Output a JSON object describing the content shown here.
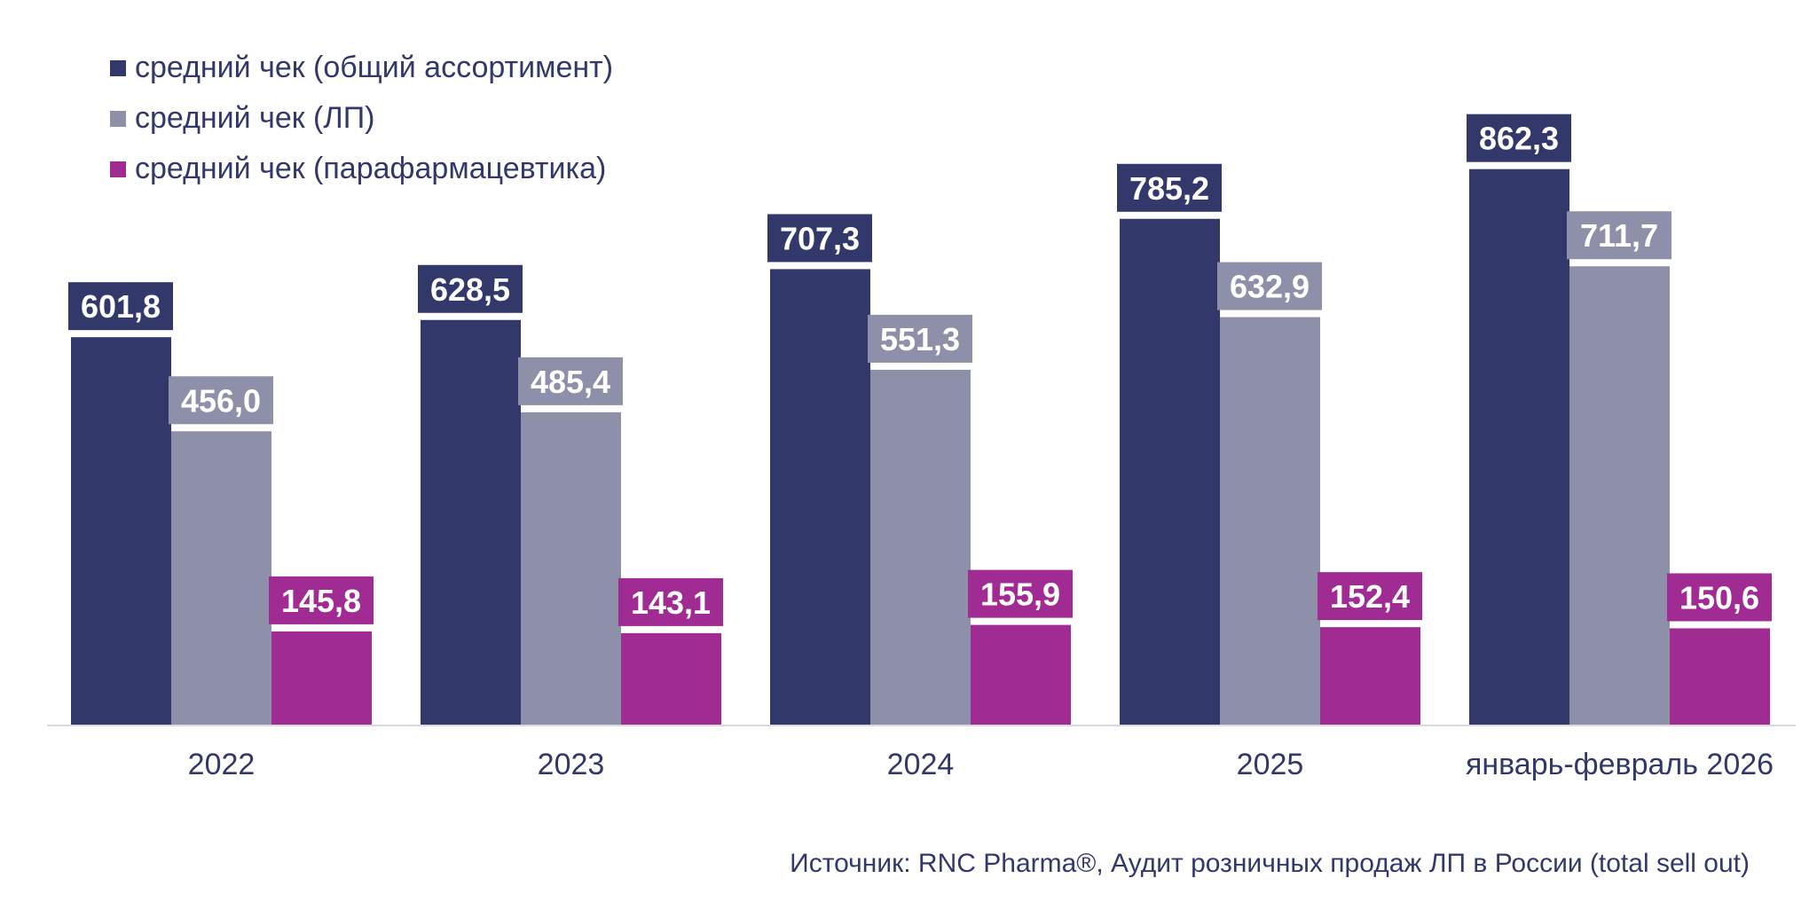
{
  "chart_data": {
    "type": "bar",
    "categories": [
      "2022",
      "2023",
      "2024",
      "2025",
      "январь-февраль 2026"
    ],
    "series": [
      {
        "name": "средний чек (общий ассортимент)",
        "color": "#33386b",
        "values": [
          601.8,
          628.5,
          707.3,
          785.2,
          862.3
        ],
        "labels": [
          "601,8",
          "628,5",
          "707,3",
          "785,2",
          "862,3"
        ]
      },
      {
        "name": "средний чек (ЛП)",
        "color": "#8e90aa",
        "values": [
          456.0,
          485.4,
          551.3,
          632.9,
          711.7
        ],
        "labels": [
          "456,0",
          "485,4",
          "551,3",
          "632,9",
          "711,7"
        ]
      },
      {
        "name": "средний чек (парафармацевтика)",
        "color": "#a02b93",
        "values": [
          145.8,
          143.1,
          155.9,
          152.4,
          150.6
        ],
        "labels": [
          "145,8",
          "143,1",
          "155,9",
          "152,4",
          "150,6"
        ]
      }
    ],
    "ylim": [
      0,
      900
    ],
    "grid": false,
    "legend_position": "top-left",
    "source": "Источник: RNC Pharma®, Аудит розничных продаж ЛП в России (total sell out)"
  }
}
